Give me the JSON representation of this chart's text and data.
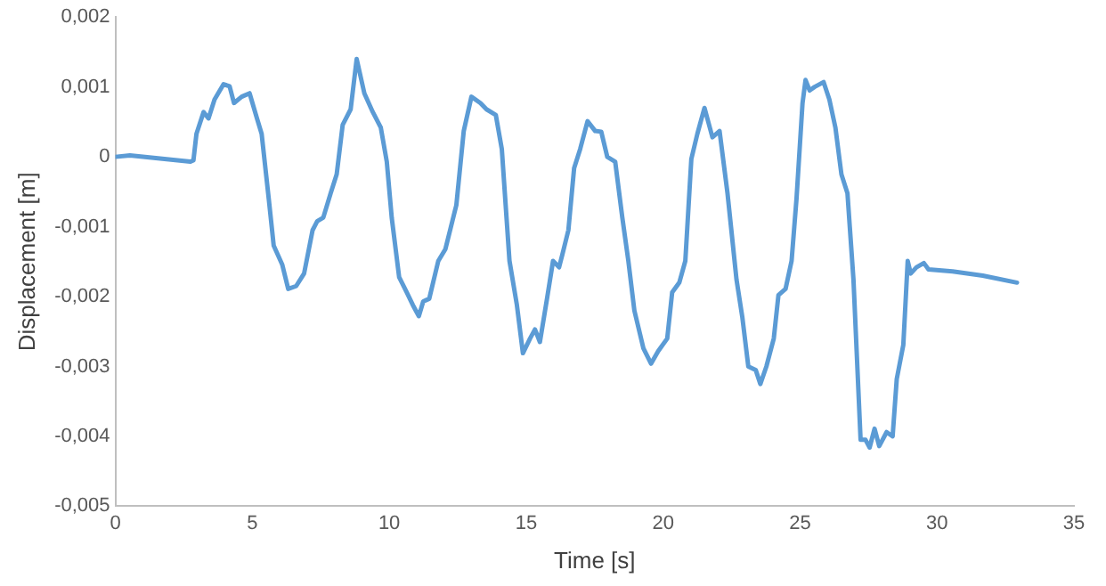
{
  "chart_data": {
    "type": "line",
    "xlabel": "Time [s]",
    "ylabel": "Displacement [m]",
    "grid": false,
    "legend": false,
    "marker": "none",
    "line_style": "solid",
    "xlim": [
      0,
      35
    ],
    "xticks": [
      0,
      5,
      10,
      15,
      20,
      25,
      30,
      35
    ],
    "ylim": [
      -0.005,
      0.002
    ],
    "yticks": [
      {
        "value": -0.005,
        "label": "-0,005"
      },
      {
        "value": -0.004,
        "label": "-0,004"
      },
      {
        "value": -0.003,
        "label": "-0,003"
      },
      {
        "value": -0.002,
        "label": "-0,002"
      },
      {
        "value": -0.001,
        "label": "-0,001"
      },
      {
        "value": 0,
        "label": "0"
      },
      {
        "value": 0.001,
        "label": "0,001"
      },
      {
        "value": 0.002,
        "label": "0,002"
      }
    ],
    "series": [
      {
        "color": "#5b9bd5",
        "x": [
          0,
          0.53,
          2.74,
          2.85,
          2.96,
          3.22,
          3.4,
          3.62,
          3.95,
          4.17,
          4.33,
          4.61,
          4.9,
          5.17,
          5.34,
          5.6,
          5.78,
          6.09,
          6.31,
          6.6,
          6.89,
          7.2,
          7.37,
          7.59,
          7.86,
          8.08,
          8.3,
          8.59,
          8.81,
          9.09,
          9.4,
          9.69,
          9.91,
          10.09,
          10.36,
          10.64,
          10.86,
          11.08,
          11.24,
          11.46,
          11.79,
          12.05,
          12.45,
          12.72,
          13.0,
          13.33,
          13.55,
          13.89,
          14.11,
          14.39,
          14.66,
          14.88,
          15.14,
          15.32,
          15.5,
          15.76,
          15.98,
          16.2,
          16.32,
          16.54,
          16.75,
          16.97,
          17.24,
          17.52,
          17.74,
          17.96,
          18.25,
          18.51,
          18.73,
          18.95,
          19.28,
          19.56,
          19.82,
          20.15,
          20.33,
          20.59,
          20.81,
          21.03,
          21.25,
          21.51,
          21.8,
          22.06,
          22.35,
          22.68,
          22.89,
          23.11,
          23.38,
          23.55,
          23.77,
          24.04,
          24.21,
          24.47,
          24.69,
          24.87,
          25.09,
          25.2,
          25.35,
          25.53,
          25.86,
          26.07,
          26.29,
          26.51,
          26.73,
          26.95,
          27.21,
          27.39,
          27.54,
          27.72,
          27.89,
          28.16,
          28.38,
          28.53,
          28.77,
          28.93,
          29.04,
          29.25,
          29.52,
          29.69,
          30.57,
          31.67,
          32.92
        ],
        "values": [
          0,
          2e-05,
          -7e-05,
          -5e-05,
          0.00033,
          0.00064,
          0.00055,
          0.00082,
          0.00104,
          0.00101,
          0.00077,
          0.00086,
          0.00091,
          0.00055,
          0.00033,
          -0.0006,
          -0.00127,
          -0.00154,
          -0.00189,
          -0.00185,
          -0.00167,
          -0.00105,
          -0.00092,
          -0.00087,
          -0.00052,
          -0.00025,
          0.00046,
          0.00068,
          0.0014,
          0.00091,
          0.00064,
          0.00042,
          -7e-05,
          -0.00087,
          -0.00172,
          -0.00194,
          -0.00212,
          -0.00228,
          -0.00207,
          -0.00203,
          -0.00149,
          -0.00132,
          -0.00069,
          0.00037,
          0.00086,
          0.00077,
          0.00068,
          0.0006,
          0.00011,
          -0.00149,
          -0.00212,
          -0.00281,
          -0.0026,
          -0.00247,
          -0.00265,
          -0.00203,
          -0.00149,
          -0.00158,
          -0.0014,
          -0.00105,
          -0.00016,
          0.00011,
          0.00051,
          0.00037,
          0.00036,
          0,
          -7e-05,
          -0.00087,
          -0.00149,
          -0.0022,
          -0.00274,
          -0.00296,
          -0.00278,
          -0.0026,
          -0.00194,
          -0.0018,
          -0.00149,
          -3e-05,
          0.00033,
          0.0007,
          0.00028,
          0.00037,
          -0.00052,
          -0.00176,
          -0.00229,
          -0.003,
          -0.00305,
          -0.00325,
          -0.003,
          -0.0026,
          -0.00198,
          -0.00189,
          -0.00149,
          -0.0006,
          0.00077,
          0.0011,
          0.00095,
          0.001,
          0.00107,
          0.00082,
          0.00042,
          -0.00025,
          -0.00052,
          -0.00176,
          -0.00405,
          -0.00405,
          -0.00416,
          -0.00389,
          -0.00414,
          -0.00394,
          -0.004,
          -0.00318,
          -0.00269,
          -0.00149,
          -0.00167,
          -0.00158,
          -0.00152,
          -0.00161,
          -0.00164,
          -0.0017,
          -0.0018
        ]
      }
    ]
  }
}
